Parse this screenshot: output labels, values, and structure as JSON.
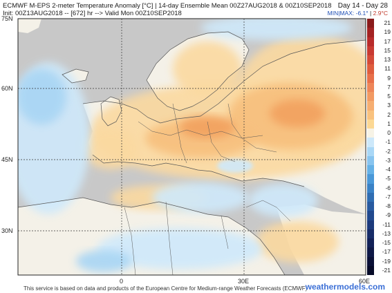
{
  "header": {
    "title_line": "ECMWF M-EPS 2-meter Temperature Anomaly [°C] | 14-day Ensemble Mean 00Z27AUG2018 & 00Z10SEP2018",
    "init_line": "Init: 00Z13AUG2018 -- [672] hr --> Valid Mon 00Z10SEP2018",
    "day_range": "Day 14 - Day 28",
    "min_label": "MIN",
    "max_label": "MAX:",
    "minmax_sep": "|",
    "min_value": "-6.1°",
    "max_value": "2.9°C"
  },
  "legend": {
    "labels": [
      "21",
      "19",
      "17",
      "15",
      "13",
      "11",
      "9",
      "7",
      "5",
      "3",
      "2",
      "1",
      "0",
      "-1",
      "-2",
      "-3",
      "-4",
      "-5",
      "-6",
      "-7",
      "-8",
      "-9",
      "-11",
      "-13",
      "-15",
      "-17",
      "-19",
      "-21"
    ],
    "colors": [
      "#8a1a1a",
      "#a32222",
      "#b82b2b",
      "#c83a32",
      "#d44a38",
      "#df5d3e",
      "#e8704a",
      "#ee8659",
      "#f29a63",
      "#f6ae72",
      "#f9c27f",
      "#fcd894",
      "#f7f3e6",
      "#cde8fa",
      "#a9d7f6",
      "#88c4ef",
      "#66b1e6",
      "#4a98d8",
      "#3a82c6",
      "#2f6db2",
      "#285aa0",
      "#21498e",
      "#1c3a7c",
      "#172c68",
      "#122157",
      "#0e1846",
      "#0a1036",
      "#060a28"
    ]
  },
  "axes": {
    "lat_labels": [
      "75N",
      "60N",
      "45N",
      "30N"
    ],
    "lon_labels": [
      "0",
      "30E",
      "60E"
    ]
  },
  "footer": {
    "disclaimer": "This service is based on data and products of the European Centre for Medium-range Weather Forecasts (ECMWF)",
    "brand": "weathermodels.com"
  },
  "colors": {
    "sea": "#c8c8c8",
    "land_neutral": "#f4f1e8",
    "warm_light": "#fbd9a0",
    "warm_mid": "#f7bf7d",
    "warm_strong": "#f2a15e",
    "cool_light": "#cfe9fb",
    "cool_mid": "#a8d5f4",
    "cool_strong": "#7fbfe9"
  }
}
